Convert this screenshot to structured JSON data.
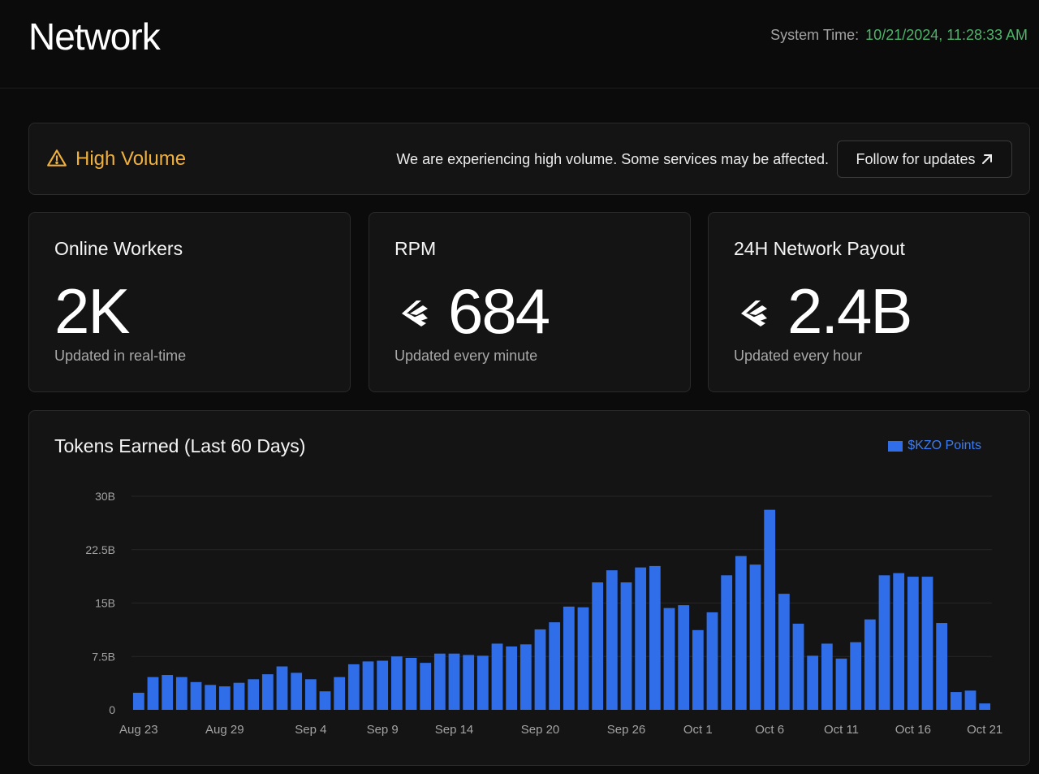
{
  "header": {
    "title": "Network",
    "system_time_label": "System Time:",
    "system_time_value": "10/21/2024, 11:28:33 AM"
  },
  "banner": {
    "icon": "warning-triangle-icon",
    "title": "High Volume",
    "message": "We are experiencing high volume. Some services may be affected.",
    "button_label": "Follow for updates",
    "button_icon": "arrow-up-right-icon"
  },
  "stats": [
    {
      "label": "Online Workers",
      "value": "2K",
      "subtitle": "Updated in real-time",
      "icon": ""
    },
    {
      "label": "RPM",
      "value": "684",
      "subtitle": "Updated every minute",
      "icon": "kzo-logo-icon"
    },
    {
      "label": "24H Network Payout",
      "value": "2.4B",
      "subtitle": "Updated every hour",
      "icon": "kzo-logo-icon"
    }
  ],
  "colors": {
    "accent_blue": "#2f6ee8",
    "warning": "#f0b03c",
    "time_green": "#4fb36b"
  },
  "chart_data": {
    "type": "bar",
    "title": "Tokens Earned (Last 60 Days)",
    "legend": [
      "$KZO Points"
    ],
    "legend_position": "top-right",
    "grid": true,
    "y_ticks": [
      "0",
      "7.5B",
      "15B",
      "22.5B",
      "30B"
    ],
    "y_tick_values": [
      0,
      7.5,
      15,
      22.5,
      30
    ],
    "ylim": [
      0,
      30
    ],
    "y_unit": "B",
    "x_ticks": [
      {
        "label": "Aug 23",
        "index": 0
      },
      {
        "label": "Aug 29",
        "index": 6
      },
      {
        "label": "Sep 4",
        "index": 12
      },
      {
        "label": "Sep 9",
        "index": 17
      },
      {
        "label": "Sep 14",
        "index": 22
      },
      {
        "label": "Sep 20",
        "index": 28
      },
      {
        "label": "Sep 26",
        "index": 34
      },
      {
        "label": "Oct 1",
        "index": 39
      },
      {
        "label": "Oct 6",
        "index": 44
      },
      {
        "label": "Oct 11",
        "index": 49
      },
      {
        "label": "Oct 16",
        "index": 54
      },
      {
        "label": "Oct 21",
        "index": 59
      }
    ],
    "series": [
      {
        "name": "$KZO Points",
        "values": [
          2.4,
          4.6,
          4.9,
          4.6,
          3.9,
          3.5,
          3.3,
          3.8,
          4.3,
          5.0,
          6.1,
          5.2,
          4.3,
          2.6,
          4.6,
          6.4,
          6.8,
          6.9,
          7.5,
          7.3,
          6.6,
          7.9,
          7.9,
          7.7,
          7.6,
          9.3,
          8.9,
          9.2,
          11.3,
          12.3,
          14.5,
          14.4,
          17.9,
          19.6,
          17.9,
          20.0,
          20.2,
          14.3,
          14.7,
          11.2,
          13.7,
          18.9,
          21.6,
          20.4,
          28.1,
          16.3,
          12.1,
          7.6,
          9.3,
          7.2,
          9.5,
          12.7,
          18.9,
          19.2,
          18.7,
          18.7,
          12.2,
          2.5,
          2.7,
          0.9
        ]
      }
    ]
  }
}
